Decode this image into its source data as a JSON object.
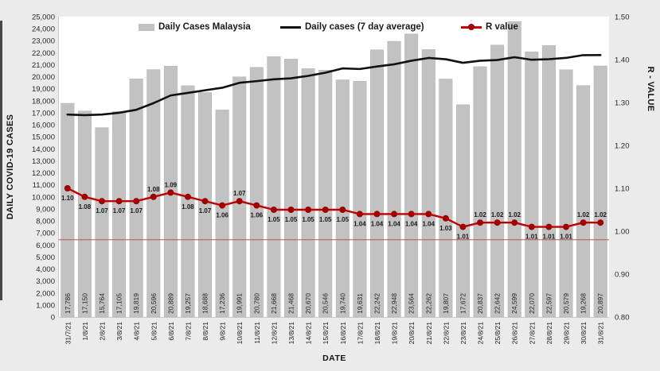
{
  "chart_data": {
    "type": "combo",
    "categories": [
      "31/7/21",
      "1/8/21",
      "2/8/21",
      "3/8/21",
      "4/8/21",
      "5/8/21",
      "6/8/21",
      "7/8/21",
      "8/8/21",
      "9/8/21",
      "10/8/21",
      "11/8/21",
      "12/8/21",
      "13/8/21",
      "14/8/21",
      "15/8/21",
      "16/8/21",
      "17/8/21",
      "18/8/21",
      "19/8/21",
      "20/8/21",
      "21/8/21",
      "22/8/21",
      "23/8/21",
      "24/8/21",
      "25/8/21",
      "26/8/21",
      "27/8/21",
      "28/8/21",
      "29/8/21",
      "30/8/21",
      "31/8/21"
    ],
    "series": [
      {
        "name": "Daily Cases Malaysia",
        "type": "bar",
        "axis": "left",
        "color": "#c2c2c2",
        "bar_labels_shown": true,
        "values": [
          17786,
          17150,
          15764,
          17105,
          19819,
          20596,
          20889,
          19257,
          18688,
          17236,
          19991,
          20780,
          21668,
          21468,
          20670,
          20546,
          19740,
          19631,
          22242,
          22948,
          23564,
          22262,
          19807,
          17672,
          20837,
          22642,
          24599,
          22070,
          22597,
          20579,
          19268,
          20897
        ]
      },
      {
        "name": "Daily cases (7 day average)",
        "type": "line",
        "axis": "left",
        "color": "#111111",
        "values": [
          16850,
          16800,
          16850,
          17000,
          17250,
          17800,
          18444,
          18654,
          18874,
          19084,
          19497,
          19634,
          19787,
          19870,
          20072,
          20337,
          20695,
          20643,
          20852,
          21035,
          21334,
          21562,
          21456,
          21161,
          21333,
          21390,
          21626,
          21413,
          21461,
          21571,
          21799,
          21807
        ]
      },
      {
        "name": "R value",
        "type": "line",
        "axis": "right",
        "color": "#c00000",
        "marker_color": "#a00000",
        "point_labels_shown": true,
        "values": [
          1.1,
          1.08,
          1.07,
          1.07,
          1.07,
          1.08,
          1.09,
          1.08,
          1.07,
          1.06,
          1.07,
          1.06,
          1.05,
          1.05,
          1.05,
          1.05,
          1.05,
          1.04,
          1.04,
          1.04,
          1.04,
          1.04,
          1.03,
          1.01,
          1.02,
          1.02,
          1.02,
          1.01,
          1.01,
          1.01,
          1.02,
          1.02
        ],
        "label_positions": [
          "below",
          "below",
          "below",
          "below",
          "below",
          "above",
          "above",
          "below",
          "below",
          "below",
          "above",
          "below",
          "below",
          "below",
          "below",
          "below",
          "below",
          "below",
          "below",
          "below",
          "below",
          "below",
          "below",
          "below",
          "above",
          "above",
          "above",
          "below",
          "below",
          "below",
          "above",
          "above"
        ]
      }
    ],
    "left_axis": {
      "title": "DAILY COVID-19 CASES",
      "min": 0,
      "max": 25000,
      "step": 1000
    },
    "right_axis": {
      "title": "R - VALUE",
      "min": 0.8,
      "max": 1.5,
      "step": 0.1
    },
    "x_axis": {
      "title": "DATE"
    },
    "reference_line": {
      "axis": "right",
      "value": 0.98,
      "color": "#b35955"
    },
    "legend_position": "top-inside",
    "plot_background": "#ffffff",
    "page_background": "#ebebeb"
  }
}
